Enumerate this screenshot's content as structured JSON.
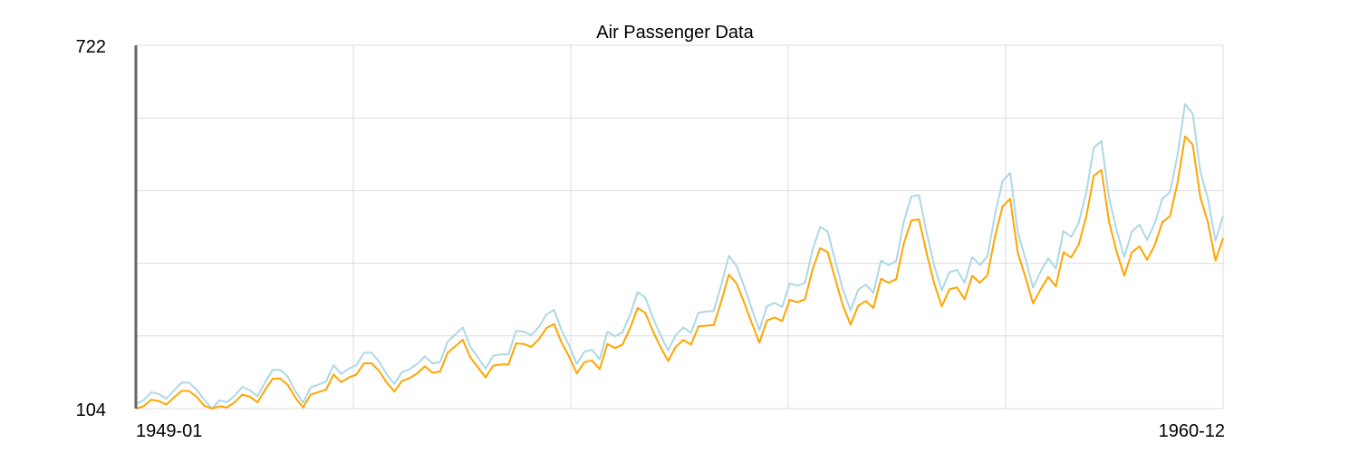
{
  "chart_data": {
    "type": "line",
    "title": "Air Passenger Data",
    "xlabel": "",
    "ylabel": "",
    "ylim": [
      104,
      722
    ],
    "y_tick_labels": [
      "104",
      "722"
    ],
    "x_tick_labels": [
      "1949-01",
      "1960-12"
    ],
    "grid": true,
    "start": "1949-01",
    "end": "1960-12",
    "series": [
      {
        "color": "#add8e6",
        "values": [
          112,
          118,
          132,
          129,
          121,
          135,
          148,
          148,
          136,
          119,
          104,
          118,
          115,
          126,
          141,
          135,
          125,
          149,
          170,
          170,
          158,
          133,
          114,
          140,
          145,
          150,
          178,
          163,
          172,
          178,
          199,
          199,
          184,
          162,
          146,
          166,
          171,
          180,
          193,
          181,
          183,
          218,
          230,
          242,
          209,
          191,
          172,
          194,
          196,
          196,
          236,
          235,
          229,
          243,
          264,
          272,
          237,
          211,
          180,
          201,
          204,
          188,
          235,
          227,
          234,
          264,
          302,
          293,
          259,
          229,
          203,
          229,
          242,
          233,
          267,
          269,
          270,
          315,
          364,
          347,
          312,
          274,
          237,
          278,
          284,
          277,
          317,
          313,
          318,
          374,
          413,
          405,
          355,
          306,
          271,
          306,
          315,
          301,
          356,
          348,
          355,
          422,
          465,
          467,
          404,
          347,
          305,
          336,
          340,
          318,
          362,
          348,
          363,
          435,
          491,
          505,
          404,
          359,
          310,
          337,
          360,
          342,
          406,
          396,
          420,
          472,
          548,
          559,
          463,
          407,
          362,
          405,
          417,
          391,
          419,
          461,
          472,
          535,
          622,
          606,
          508,
          461,
          390,
          432
        ]
      },
      {
        "color": "#ffa500",
        "values": [
          104,
          108,
          119,
          117,
          111,
          123,
          134,
          134,
          124,
          109,
          104,
          108,
          106,
          115,
          128,
          124,
          115,
          136,
          155,
          155,
          144,
          122,
          106,
          128,
          132,
          136,
          162,
          149,
          157,
          162,
          181,
          181,
          168,
          148,
          133,
          151,
          156,
          164,
          176,
          165,
          167,
          199,
          210,
          221,
          191,
          174,
          157,
          177,
          179,
          179,
          215,
          214,
          209,
          222,
          241,
          248,
          216,
          192,
          164,
          183,
          186,
          171,
          214,
          207,
          213,
          241,
          275,
          267,
          236,
          209,
          185,
          209,
          221,
          213,
          244,
          245,
          246,
          287,
          332,
          317,
          285,
          250,
          216,
          254,
          259,
          253,
          289,
          285,
          290,
          341,
          377,
          370,
          324,
          279,
          247,
          279,
          287,
          275,
          325,
          318,
          324,
          385,
          424,
          426,
          369,
          317,
          278,
          307,
          310,
          290,
          330,
          318,
          331,
          397,
          448,
          461,
          369,
          328,
          283,
          307,
          328,
          312,
          370,
          361,
          383,
          431,
          500,
          510,
          422,
          371,
          330,
          370,
          380,
          357,
          382,
          421,
          431,
          488,
          567,
          553,
          464,
          421,
          356,
          394
        ]
      }
    ]
  }
}
